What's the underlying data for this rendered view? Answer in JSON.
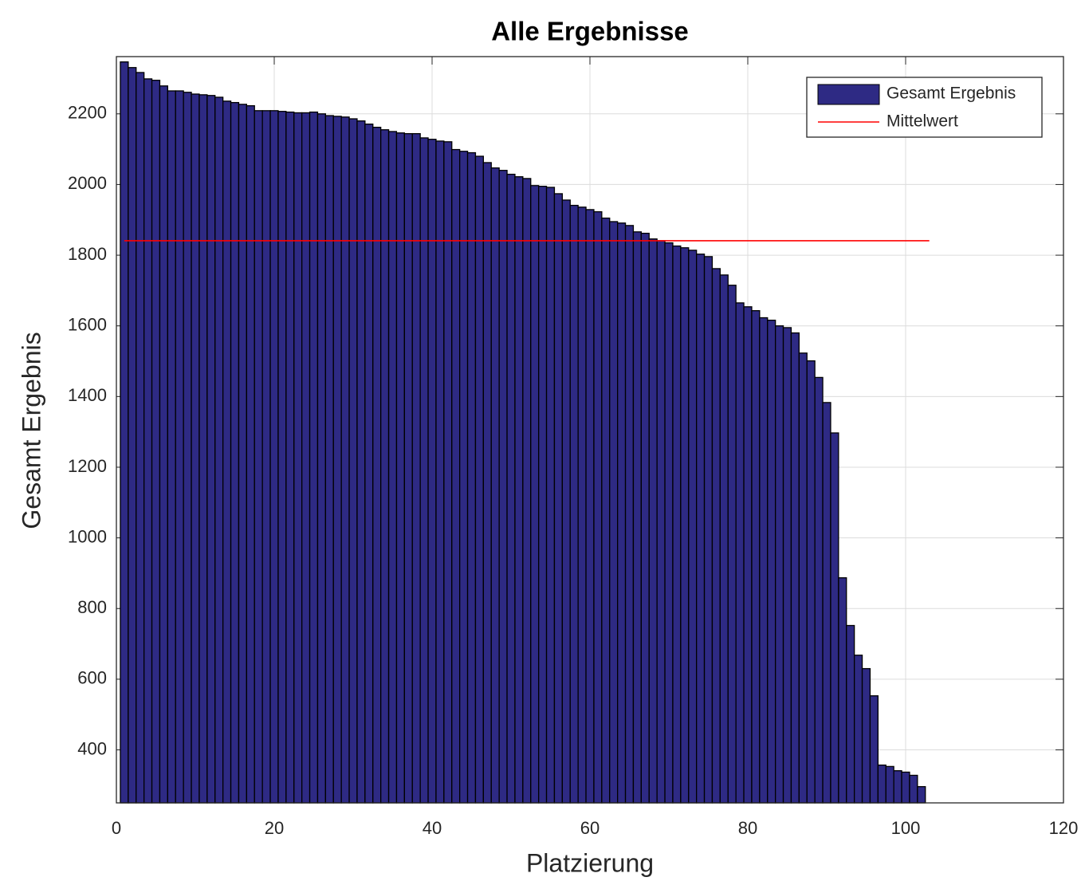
{
  "chart_data": {
    "type": "bar",
    "title": "Alle Ergebnisse",
    "x_label": "Platzierung",
    "y_label": "Gesamt Ergebnis",
    "xlim": [
      0,
      120
    ],
    "xticks": [
      0,
      20,
      40,
      60,
      80,
      100,
      120
    ],
    "ylim": [
      250,
      2362
    ],
    "yticks": [
      400,
      600,
      800,
      1000,
      1200,
      1400,
      1600,
      1800,
      2000,
      2200
    ],
    "grid": true,
    "legend": "upper right",
    "series": [
      {
        "name": "Gesamt Ergebnis",
        "color": "#2e2a84",
        "type": "bar",
        "x": [
          1,
          2,
          3,
          4,
          5,
          6,
          7,
          8,
          9,
          10,
          11,
          12,
          13,
          14,
          15,
          16,
          17,
          18,
          19,
          20,
          21,
          22,
          23,
          24,
          25,
          26,
          27,
          28,
          29,
          30,
          31,
          32,
          33,
          34,
          35,
          36,
          37,
          38,
          39,
          40,
          41,
          42,
          43,
          44,
          45,
          46,
          47,
          48,
          49,
          50,
          51,
          52,
          53,
          54,
          55,
          56,
          57,
          58,
          59,
          60,
          61,
          62,
          63,
          64,
          65,
          66,
          67,
          68,
          69,
          70,
          71,
          72,
          73,
          74,
          75,
          76,
          77,
          78,
          79,
          80,
          81,
          82,
          83,
          84,
          85,
          86,
          87,
          88,
          89,
          90,
          91,
          92,
          93,
          94,
          95,
          96,
          97,
          98,
          99,
          100,
          101,
          102
        ],
        "values": [
          2347,
          2331,
          2317,
          2299,
          2295,
          2279,
          2265,
          2265,
          2261,
          2256,
          2254,
          2252,
          2247,
          2236,
          2232,
          2227,
          2223,
          2209,
          2209,
          2209,
          2207,
          2205,
          2203,
          2203,
          2205,
          2200,
          2195,
          2193,
          2191,
          2186,
          2180,
          2171,
          2162,
          2155,
          2150,
          2146,
          2144,
          2144,
          2132,
          2128,
          2123,
          2121,
          2099,
          2094,
          2090,
          2080,
          2062,
          2047,
          2040,
          2029,
          2022,
          2017,
          1997,
          1995,
          1992,
          1974,
          1956,
          1941,
          1936,
          1929,
          1923,
          1905,
          1895,
          1891,
          1884,
          1866,
          1862,
          1846,
          1841,
          1835,
          1826,
          1821,
          1814,
          1803,
          1796,
          1762,
          1744,
          1715,
          1665,
          1654,
          1643,
          1623,
          1616,
          1600,
          1595,
          1580,
          1523,
          1501,
          1454,
          1383,
          1297,
          887,
          752,
          668,
          630,
          553,
          357,
          353,
          341,
          337,
          328,
          296
        ]
      },
      {
        "name": "Mittelwert",
        "color": "#ff0000",
        "type": "line",
        "x": [
          1,
          103
        ],
        "values": [
          1841,
          1841
        ]
      }
    ]
  }
}
